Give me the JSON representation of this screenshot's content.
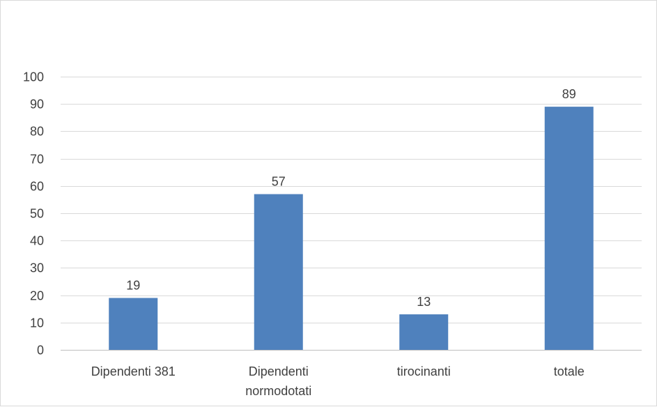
{
  "chart_data": {
    "type": "bar",
    "title": "",
    "xlabel": "",
    "ylabel": "",
    "categories": [
      [
        "Dipendenti 381"
      ],
      [
        "Dipendenti",
        "normodotati"
      ],
      [
        "tirocinanti"
      ],
      [
        "totale"
      ]
    ],
    "values": [
      19,
      57,
      13,
      89
    ],
    "ylim": [
      0,
      100
    ],
    "yticks": [
      0,
      10,
      20,
      30,
      40,
      50,
      60,
      70,
      80,
      90,
      100
    ],
    "grid": true,
    "legend": "none",
    "colors": {
      "bar": "#4f81bd",
      "grid": "#d9d9d9",
      "axis": "#bfbfbf",
      "text": "#404040"
    }
  }
}
